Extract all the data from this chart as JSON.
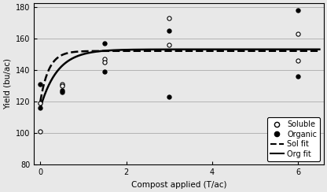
{
  "title": "",
  "xlabel": "Compost applied (T/ac)",
  "ylabel": "Yield (bu/ac)",
  "xlim": [
    -0.15,
    6.6
  ],
  "ylim": [
    80,
    182
  ],
  "yticks": [
    80,
    100,
    120,
    140,
    160,
    180
  ],
  "xticks": [
    0,
    2,
    4,
    6
  ],
  "soluble_x": [
    0.0,
    0.0,
    0.5,
    0.5,
    1.5,
    1.5,
    3.0,
    3.0,
    6.0,
    6.0
  ],
  "soluble_y": [
    119,
    101,
    131,
    130,
    147,
    145,
    173,
    156,
    163,
    146
  ],
  "organic_x": [
    0.0,
    0.0,
    0.5,
    0.5,
    1.5,
    1.5,
    3.0,
    3.0,
    6.0,
    6.0
  ],
  "organic_y": [
    131,
    116,
    127,
    126,
    157,
    139,
    165,
    123,
    178,
    136
  ],
  "sol_a": 152,
  "sol_b": 32,
  "sol_k": 5.0,
  "org_a": 153,
  "org_b": 37,
  "org_k": 2.5,
  "background_color": "#f0f0f0",
  "grid_color": "#aaaaaa",
  "marker_size": 14,
  "legend_fontsize": 7.0
}
